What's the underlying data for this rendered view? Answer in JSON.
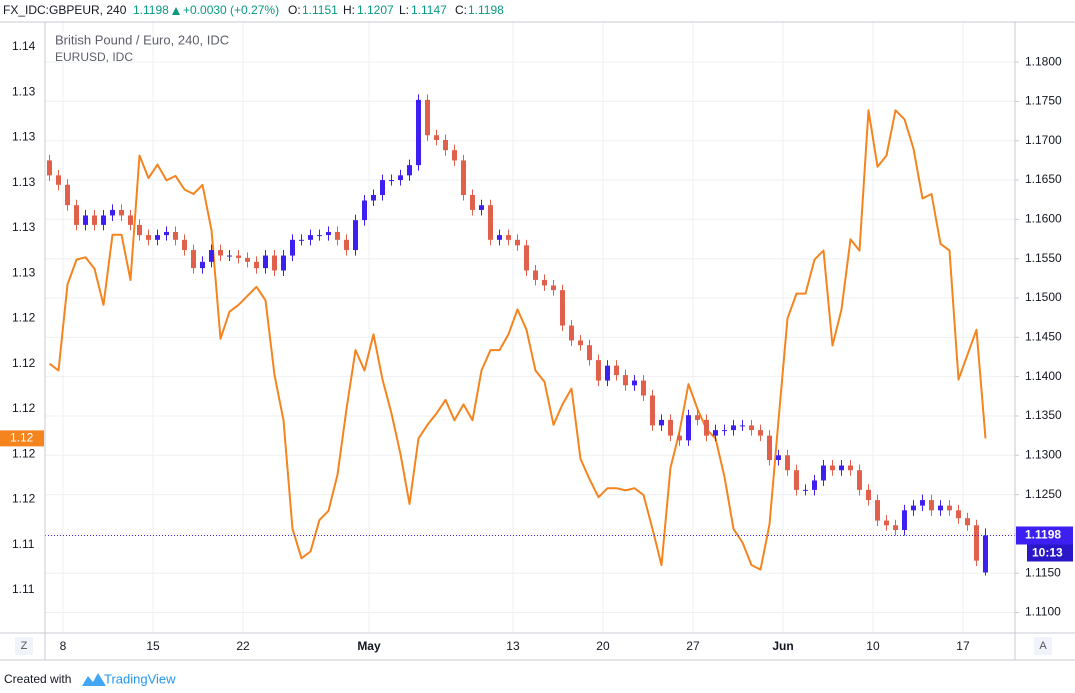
{
  "chart_data": {
    "type": "candlestick",
    "header": {
      "symbol": "FX_IDC:GBPEUR, 240",
      "change": "+0.0030 (+0.27%)",
      "open_label": "O:",
      "high_label": "H:",
      "low_label": "L:",
      "close_label": "C:"
    },
    "categories": [
      null,
      null,
      "8",
      null,
      null,
      null,
      null,
      null,
      null,
      null,
      null,
      null,
      "15",
      null,
      null,
      null,
      null,
      null,
      null,
      null,
      null,
      null,
      "22",
      null,
      null,
      null,
      null,
      null,
      null,
      null,
      null,
      null,
      null,
      null,
      null,
      null,
      "May",
      null,
      null,
      null,
      null,
      null,
      null,
      null,
      null,
      null,
      null,
      null,
      null,
      null,
      null,
      null,
      "13",
      null,
      null,
      null,
      null,
      null,
      null,
      null,
      null,
      null,
      "20",
      null,
      null,
      null,
      null,
      null,
      null,
      null,
      null,
      null,
      "27",
      null,
      null,
      null,
      null,
      null,
      null,
      null,
      null,
      null,
      "Jun",
      null,
      null,
      null,
      null,
      null,
      null,
      null,
      null,
      null,
      "10",
      null,
      null,
      null,
      null,
      null,
      null,
      null,
      null,
      null,
      "17",
      null,
      null
    ],
    "series": [
      {
        "name": "British Pound / Euro, 240, IDC",
        "type": "candlestick",
        "axis": "y2",
        "up_color": "#3d1ff2",
        "down_color": "#e0604c",
        "open": [
          1.1675,
          1.1656,
          1.1644,
          1.1618,
          1.1593,
          1.1605,
          1.1593,
          1.1605,
          1.1612,
          1.1605,
          1.1593,
          1.158,
          1.1574,
          1.158,
          1.1584,
          1.1574,
          1.1561,
          1.1538,
          1.1546,
          1.1561,
          1.1554,
          1.1554,
          1.1551,
          1.1546,
          1.1538,
          1.1554,
          1.1535,
          1.1554,
          1.1574,
          1.1574,
          1.158,
          1.158,
          1.1584,
          1.1574,
          1.1561,
          1.1599,
          1.1624,
          1.1631,
          1.165,
          1.165,
          1.1656,
          1.1669,
          1.1752,
          1.1707,
          1.1701,
          1.1688,
          1.1675,
          1.1631,
          1.1612,
          1.1618,
          1.1574,
          1.158,
          1.1574,
          1.1567,
          1.1535,
          1.1523,
          1.1516,
          1.151,
          1.1465,
          1.1446,
          1.144,
          1.1421,
          1.1395,
          1.1414,
          1.1402,
          1.1389,
          1.1395,
          1.1376,
          1.1338,
          1.1345,
          1.1325,
          1.1319,
          1.1351,
          1.1345,
          1.1325,
          1.1332,
          1.1332,
          1.1338,
          1.1338,
          1.1332,
          1.1325,
          1.1294,
          1.13,
          1.1281,
          1.1256,
          1.1256,
          1.1268,
          1.1287,
          1.1281,
          1.1287,
          1.1281,
          1.1256,
          1.1243,
          1.1217,
          1.1211,
          1.1205,
          1.123,
          1.1236,
          1.1243,
          1.123,
          1.1236,
          1.123,
          1.122,
          1.1211,
          1.1151
        ],
        "high": [
          1.1682,
          1.1663,
          1.1651,
          1.1625,
          1.1612,
          1.1612,
          1.1612,
          1.1619,
          1.1619,
          1.1612,
          1.16,
          1.1587,
          1.1587,
          1.1591,
          1.1591,
          1.1581,
          1.1568,
          1.1553,
          1.1568,
          1.1568,
          1.1561,
          1.1561,
          1.1558,
          1.1553,
          1.1561,
          1.1561,
          1.1561,
          1.1581,
          1.1581,
          1.1587,
          1.1587,
          1.1591,
          1.1591,
          1.1581,
          1.1606,
          1.1631,
          1.1638,
          1.1657,
          1.1657,
          1.1663,
          1.1676,
          1.1759,
          1.1759,
          1.1714,
          1.1708,
          1.1695,
          1.1682,
          1.1638,
          1.1625,
          1.1625,
          1.1587,
          1.1587,
          1.1581,
          1.1574,
          1.1542,
          1.153,
          1.1523,
          1.1517,
          1.1472,
          1.1453,
          1.1447,
          1.1428,
          1.1421,
          1.1421,
          1.1409,
          1.1402,
          1.1402,
          1.1383,
          1.1352,
          1.1352,
          1.1332,
          1.1358,
          1.1358,
          1.1352,
          1.1339,
          1.1339,
          1.1345,
          1.1345,
          1.1345,
          1.1339,
          1.1332,
          1.1307,
          1.1307,
          1.1288,
          1.1263,
          1.1275,
          1.1294,
          1.1294,
          1.1294,
          1.1294,
          1.1288,
          1.1263,
          1.125,
          1.1224,
          1.1218,
          1.1237,
          1.1243,
          1.125,
          1.125,
          1.1243,
          1.1243,
          1.1237,
          1.1227,
          1.1218,
          1.1207
        ],
        "low": [
          1.1649,
          1.1637,
          1.1611,
          1.1586,
          1.1586,
          1.1586,
          1.1586,
          1.1598,
          1.1598,
          1.1586,
          1.1573,
          1.1567,
          1.1567,
          1.1573,
          1.1567,
          1.1554,
          1.1531,
          1.1531,
          1.1539,
          1.1547,
          1.1547,
          1.1544,
          1.1539,
          1.1531,
          1.1531,
          1.1528,
          1.1528,
          1.1547,
          1.1567,
          1.1567,
          1.1573,
          1.1573,
          1.1567,
          1.1554,
          1.1554,
          1.1592,
          1.1617,
          1.1624,
          1.1643,
          1.1643,
          1.1649,
          1.1662,
          1.17,
          1.1694,
          1.1681,
          1.1668,
          1.1624,
          1.1605,
          1.1605,
          1.1567,
          1.1567,
          1.1567,
          1.156,
          1.1528,
          1.1516,
          1.1509,
          1.1503,
          1.1458,
          1.1439,
          1.1433,
          1.1414,
          1.1388,
          1.1388,
          1.1395,
          1.1382,
          1.1382,
          1.1369,
          1.1331,
          1.1331,
          1.1318,
          1.1312,
          1.1312,
          1.1338,
          1.1318,
          1.1318,
          1.1325,
          1.1325,
          1.1331,
          1.1325,
          1.1318,
          1.1287,
          1.1287,
          1.1274,
          1.1249,
          1.1249,
          1.1249,
          1.1261,
          1.1274,
          1.1274,
          1.1274,
          1.1249,
          1.1236,
          1.121,
          1.1204,
          1.1198,
          1.1198,
          1.1223,
          1.1229,
          1.1223,
          1.1223,
          1.1223,
          1.1213,
          1.1204,
          1.1159,
          1.1147
        ],
        "close": [
          1.1656,
          1.1644,
          1.1618,
          1.1593,
          1.1605,
          1.1593,
          1.1605,
          1.1612,
          1.1605,
          1.1593,
          1.158,
          1.1574,
          1.158,
          1.1584,
          1.1574,
          1.1561,
          1.1538,
          1.1546,
          1.1561,
          1.1554,
          1.1554,
          1.1551,
          1.1546,
          1.1538,
          1.1554,
          1.1535,
          1.1554,
          1.1574,
          1.1574,
          1.158,
          1.158,
          1.1584,
          1.1574,
          1.1561,
          1.1599,
          1.1624,
          1.1631,
          1.165,
          1.165,
          1.1656,
          1.1669,
          1.1752,
          1.1707,
          1.1701,
          1.1688,
          1.1675,
          1.1631,
          1.1612,
          1.1618,
          1.1574,
          1.158,
          1.1574,
          1.1567,
          1.1535,
          1.1523,
          1.1516,
          1.151,
          1.1465,
          1.1446,
          1.144,
          1.1421,
          1.1395,
          1.1414,
          1.1402,
          1.1389,
          1.1395,
          1.1376,
          1.1338,
          1.1345,
          1.1325,
          1.1319,
          1.1351,
          1.1345,
          1.1325,
          1.1332,
          1.1332,
          1.1338,
          1.1338,
          1.1332,
          1.1325,
          1.1294,
          1.13,
          1.1281,
          1.1256,
          1.1256,
          1.1268,
          1.1287,
          1.1281,
          1.1287,
          1.1281,
          1.1256,
          1.1243,
          1.1217,
          1.1211,
          1.1205,
          1.123,
          1.1236,
          1.1243,
          1.123,
          1.1236,
          1.123,
          1.122,
          1.1211,
          1.1166,
          1.1198
        ]
      },
      {
        "name": "EURUSD, IDC",
        "type": "line",
        "axis": "y",
        "color": "#f5841f",
        "last_label": "1.12",
        "values": [
          1.121,
          1.1207,
          1.1245,
          1.1256,
          1.1257,
          1.1252,
          1.1236,
          1.1267,
          1.1267,
          1.1247,
          1.1302,
          1.1292,
          1.1298,
          1.1291,
          1.1293,
          1.1287,
          1.1285,
          1.1289,
          1.1269,
          1.1221,
          1.1233,
          1.1236,
          1.124,
          1.1244,
          1.1238,
          1.1205,
          1.1185,
          1.1137,
          1.1124,
          1.1127,
          1.1141,
          1.1145,
          1.1161,
          1.119,
          1.1216,
          1.1207,
          1.1223,
          1.1203,
          1.1188,
          1.117,
          1.1148,
          1.1177,
          1.1183,
          1.1188,
          1.1194,
          1.1185,
          1.1192,
          1.1185,
          1.1207,
          1.1216,
          1.1216,
          1.1223,
          1.1234,
          1.1225,
          1.1207,
          1.1202,
          1.1183,
          1.1192,
          1.1199,
          1.1168,
          1.1159,
          1.1151,
          1.1155,
          1.1155,
          1.1154,
          1.1155,
          1.1152,
          1.1137,
          1.1121,
          1.1164,
          1.118,
          1.1201,
          1.119,
          1.1181,
          1.1177,
          1.116,
          1.1137,
          1.1131,
          1.1121,
          1.1119,
          1.1139,
          1.1185,
          1.123,
          1.1241,
          1.1241,
          1.1256,
          1.126,
          1.1218,
          1.1234,
          1.1265,
          1.126,
          1.1322,
          1.1297,
          1.1302,
          1.1322,
          1.1318,
          1.1305,
          1.1283,
          1.1285,
          1.1263,
          1.126,
          1.1203,
          1.1214,
          1.1225,
          1.1177
        ]
      }
    ],
    "ylim": [
      1.1091,
      1.1361
    ],
    "yticks": [
      {
        "value": 1.135,
        "label": "1.14"
      },
      {
        "value": 1.133,
        "label": "1.13"
      },
      {
        "value": 1.131,
        "label": "1.13"
      },
      {
        "value": 1.129,
        "label": "1.13"
      },
      {
        "value": 1.127,
        "label": "1.13"
      },
      {
        "value": 1.125,
        "label": "1.13"
      },
      {
        "value": 1.123,
        "label": "1.12"
      },
      {
        "value": 1.121,
        "label": "1.12"
      },
      {
        "value": 1.119,
        "label": "1.12"
      },
      {
        "value": 1.117,
        "label": "1.12"
      },
      {
        "value": 1.115,
        "label": "1.12"
      },
      {
        "value": 1.113,
        "label": "1.11"
      },
      {
        "value": 1.111,
        "label": "1.11"
      }
    ],
    "y2lim": [
      1.1074,
      1.1851
    ],
    "y2ticks": [
      {
        "value": 1.18,
        "label": "1.1800"
      },
      {
        "value": 1.175,
        "label": "1.1750"
      },
      {
        "value": 1.17,
        "label": "1.1700"
      },
      {
        "value": 1.165,
        "label": "1.1650"
      },
      {
        "value": 1.16,
        "label": "1.1600"
      },
      {
        "value": 1.155,
        "label": "1.1550"
      },
      {
        "value": 1.15,
        "label": "1.1500"
      },
      {
        "value": 1.145,
        "label": "1.1450"
      },
      {
        "value": 1.14,
        "label": "1.1400"
      },
      {
        "value": 1.135,
        "label": "1.1350"
      },
      {
        "value": 1.13,
        "label": "1.1300"
      },
      {
        "value": 1.125,
        "label": "1.1250"
      },
      {
        "value": 1.12,
        "label": "1.1200"
      },
      {
        "value": 1.115,
        "label": "1.1150"
      },
      {
        "value": 1.11,
        "label": "1.1100"
      }
    ],
    "grid": true,
    "countdown": "10:13",
    "buttons": {
      "left": "Z",
      "right": "A"
    },
    "footer": {
      "text": "Created with",
      "brand": "TradingView"
    }
  }
}
